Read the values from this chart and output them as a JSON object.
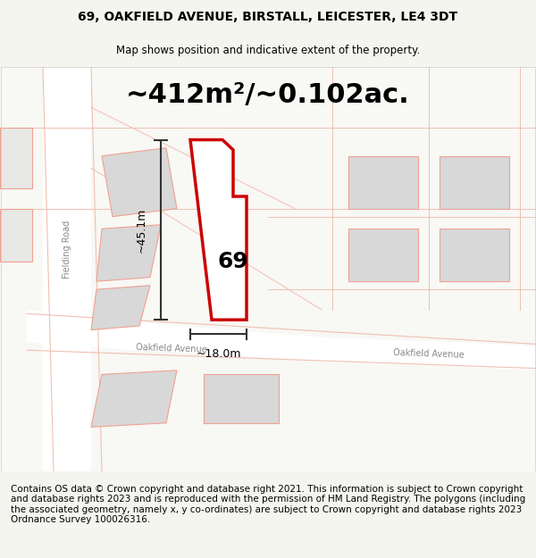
{
  "title": "69, OAKFIELD AVENUE, BIRSTALL, LEICESTER, LE4 3DT",
  "subtitle": "Map shows position and indicative extent of the property.",
  "area_label": "~412m²/~0.102ac.",
  "width_label": "~18.0m",
  "height_label": "~45.1m",
  "number_label": "69",
  "footer_text": "Contains OS data © Crown copyright and database right 2021. This information is subject to Crown copyright and database rights 2023 and is reproduced with the permission of HM Land Registry. The polygons (including the associated geometry, namely x, y co-ordinates) are subject to Crown copyright and database rights 2023 Ordnance Survey 100026316.",
  "bg_color": "#f5f5f0",
  "map_bg": "#f8f8f5",
  "road_color": "#ffffff",
  "building_color": "#d8d8d8",
  "road_line_color": "#f0c0b0",
  "road_line_color2": "#cccccc",
  "plot_outline_color": "#cc0000",
  "plot_fill_color": "#ffffff",
  "measure_line_color": "#333333",
  "road_label_color": "#888888",
  "title_fontsize": 10,
  "subtitle_fontsize": 8.5,
  "area_fontsize": 22,
  "measure_fontsize": 9,
  "number_fontsize": 18,
  "footer_fontsize": 7.5
}
